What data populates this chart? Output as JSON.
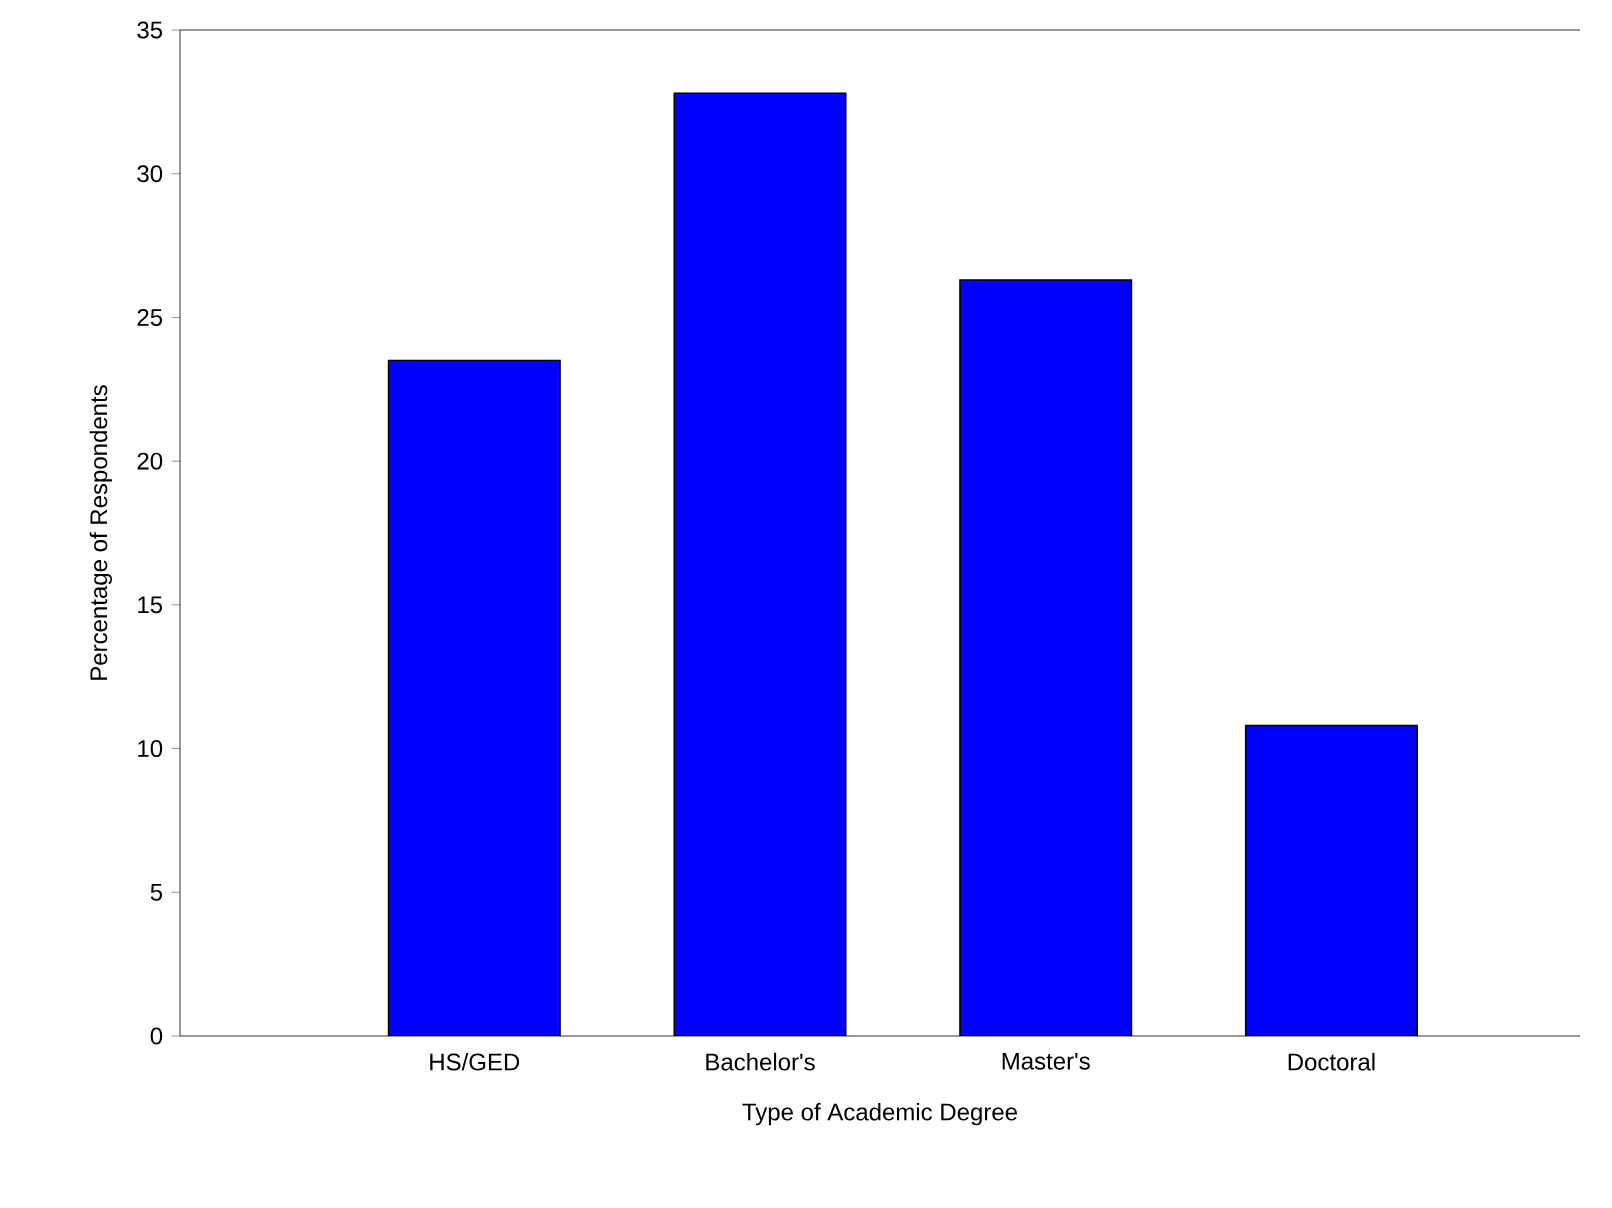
{
  "chart_data": {
    "type": "bar",
    "xlabel": "Type of Academic Degree",
    "ylabel": "Percentage of Respondents",
    "categories": [
      "HS/GED",
      "Bachelor's",
      "Master's",
      "Doctoral"
    ],
    "values": [
      23.5,
      32.8,
      26.3,
      10.8
    ],
    "color": "#0000ff",
    "ylim": [
      0,
      35
    ],
    "yticks": [
      0,
      5,
      10,
      15,
      20,
      25,
      30,
      35
    ],
    "grid": false
  }
}
